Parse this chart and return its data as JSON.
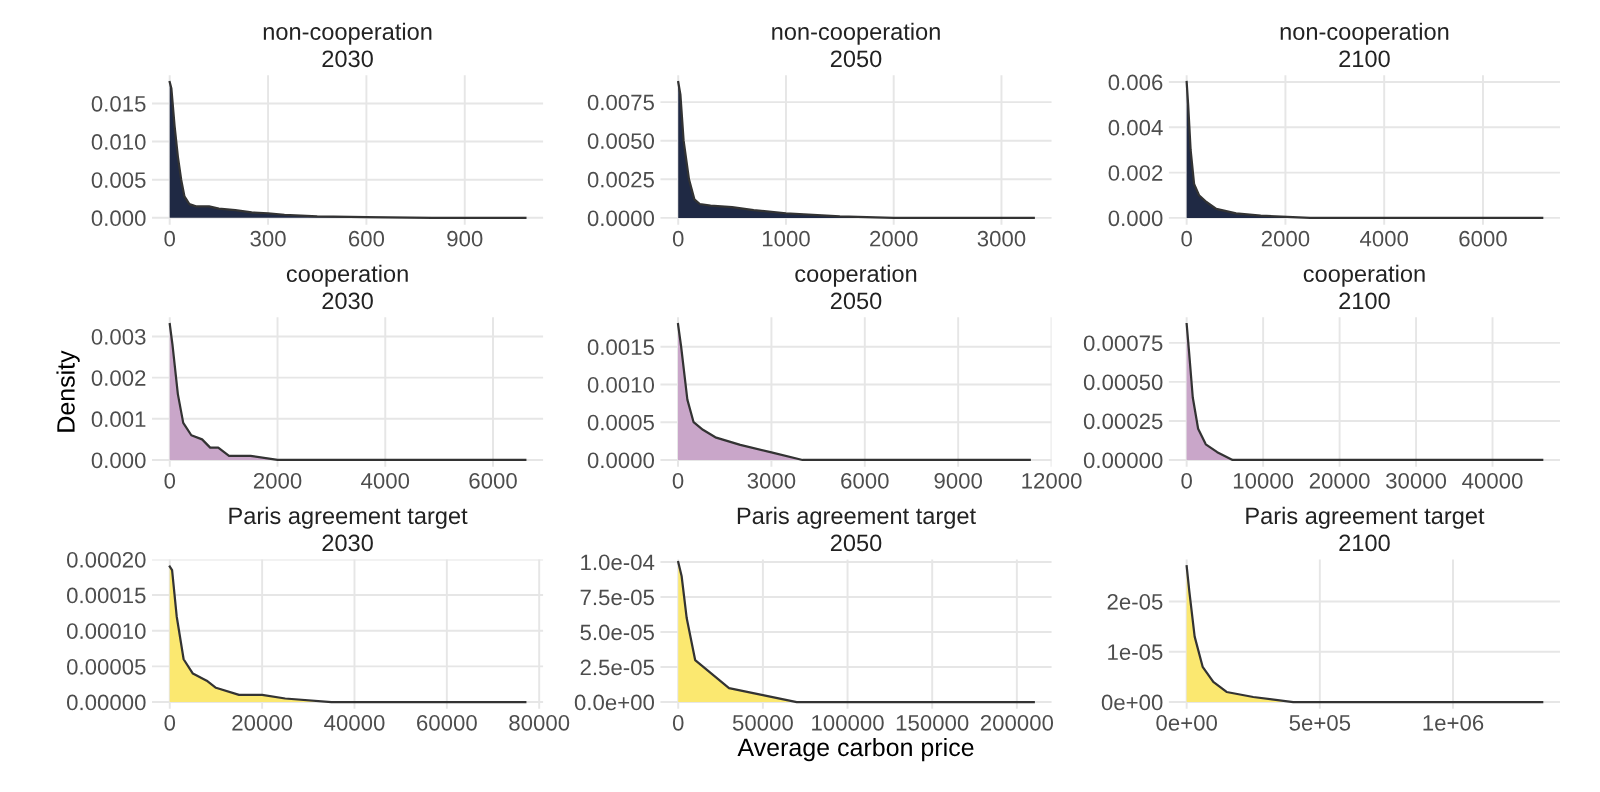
{
  "chart_data": [
    {
      "type": "area",
      "title": "non-cooperation",
      "subtitle": "2030",
      "color": "#1f2944",
      "grid": true,
      "x": [
        0,
        5,
        15,
        25,
        35,
        45,
        60,
        80,
        120,
        150,
        200,
        250,
        300,
        350,
        450,
        600,
        800,
        1085
      ],
      "values": [
        0.0178,
        0.017,
        0.012,
        0.008,
        0.005,
        0.0028,
        0.0018,
        0.0015,
        0.0015,
        0.0012,
        0.001,
        0.0007,
        0.0006,
        0.0004,
        0.0002,
        0.0001,
        0,
        0
      ],
      "xlim": [
        -54,
        1139
      ],
      "ylim": [
        -0.0009,
        0.0187
      ],
      "xticks": [
        0,
        300,
        600,
        900
      ],
      "yticks": [
        {
          "value": 0,
          "label": "0.000"
        },
        {
          "value": 0.005,
          "label": "0.005"
        },
        {
          "value": 0.01,
          "label": "0.010"
        },
        {
          "value": 0.015,
          "label": "0.015"
        }
      ]
    },
    {
      "type": "area",
      "title": "non-cooperation",
      "subtitle": "2050",
      "color": "#1f2944",
      "grid": true,
      "x": [
        0,
        20,
        50,
        100,
        150,
        200,
        300,
        500,
        700,
        1000,
        1500,
        2000,
        3300
      ],
      "values": [
        0.0088,
        0.008,
        0.005,
        0.0025,
        0.0012,
        0.0009,
        0.0008,
        0.0007,
        0.0005,
        0.0003,
        0.0001,
        0,
        0
      ],
      "xlim": [
        -165,
        3465
      ],
      "ylim": [
        -0.00044,
        0.00924
      ],
      "xticks": [
        0,
        1000,
        2000,
        3000
      ],
      "yticks": [
        {
          "value": 0,
          "label": "0.0000"
        },
        {
          "value": 0.0025,
          "label": "0.0025"
        },
        {
          "value": 0.005,
          "label": "0.0050"
        },
        {
          "value": 0.0075,
          "label": "0.0075"
        }
      ]
    },
    {
      "type": "area",
      "title": "non-cooperation",
      "subtitle": "2100",
      "color": "#1f2944",
      "grid": true,
      "x": [
        0,
        30,
        80,
        150,
        250,
        400,
        600,
        1000,
        1500,
        2500,
        7200
      ],
      "values": [
        0.006,
        0.005,
        0.003,
        0.0015,
        0.001,
        0.0007,
        0.0004,
        0.0002,
        0.0001,
        0,
        0
      ],
      "xlim": [
        -360,
        7560
      ],
      "ylim": [
        -0.0003,
        0.0063
      ],
      "xticks": [
        0,
        2000,
        4000,
        6000
      ],
      "yticks": [
        {
          "value": 0,
          "label": "0.000"
        },
        {
          "value": 0.002,
          "label": "0.002"
        },
        {
          "value": 0.004,
          "label": "0.004"
        },
        {
          "value": 0.006,
          "label": "0.006"
        }
      ]
    },
    {
      "type": "area",
      "title": "cooperation",
      "subtitle": "2030",
      "ylabel": "Density",
      "color": "#c9a6c9",
      "grid": true,
      "x": [
        0,
        50,
        150,
        250,
        400,
        600,
        750,
        900,
        1100,
        1500,
        2000,
        3000,
        6600
      ],
      "values": [
        0.0033,
        0.0028,
        0.0016,
        0.0009,
        0.0006,
        0.0005,
        0.0003,
        0.0003,
        0.0001,
        0.0001,
        0,
        0,
        0
      ],
      "xlim": [
        -330,
        6930
      ],
      "ylim": [
        -0.000165,
        0.003465
      ],
      "xticks": [
        0,
        2000,
        4000,
        6000
      ],
      "yticks": [
        {
          "value": 0,
          "label": "0.000"
        },
        {
          "value": 0.001,
          "label": "0.001"
        },
        {
          "value": 0.002,
          "label": "0.002"
        },
        {
          "value": 0.003,
          "label": "0.003"
        }
      ]
    },
    {
      "type": "area",
      "title": "cooperation",
      "subtitle": "2050",
      "color": "#c9a6c9",
      "grid": true,
      "x": [
        0,
        100,
        300,
        500,
        800,
        1200,
        2000,
        3000,
        4000,
        6000,
        11300
      ],
      "values": [
        0.0018,
        0.0015,
        0.0008,
        0.0005,
        0.0004,
        0.0003,
        0.0002,
        0.0001,
        0,
        0,
        0
      ],
      "xlim": [
        -565,
        12000
      ],
      "ylim": [
        -9e-05,
        0.00189
      ],
      "xticks": [
        0,
        3000,
        6000,
        9000,
        12000
      ],
      "yticks": [
        {
          "value": 0,
          "label": "0.0000"
        },
        {
          "value": 0.0005,
          "label": "0.0005"
        },
        {
          "value": 0.001,
          "label": "0.0010"
        },
        {
          "value": 0.0015,
          "label": "0.0015"
        }
      ]
    },
    {
      "type": "area",
      "title": "cooperation",
      "subtitle": "2100",
      "color": "#c9a6c9",
      "grid": true,
      "x": [
        0,
        300,
        800,
        1500,
        2500,
        4000,
        6000,
        10000,
        46500
      ],
      "values": [
        0.00087,
        0.0007,
        0.0004,
        0.0002,
        0.0001,
        5e-05,
        0,
        0,
        0
      ],
      "xlim": [
        -2325,
        48825
      ],
      "ylim": [
        -4.35e-05,
        0.0009135
      ],
      "xticks": [
        0,
        10000,
        20000,
        30000,
        40000
      ],
      "yticks": [
        {
          "value": 0,
          "label": "0.00000"
        },
        {
          "value": 0.00025,
          "label": "0.00025"
        },
        {
          "value": 0.0005,
          "label": "0.00050"
        },
        {
          "value": 0.00075,
          "label": "0.00075"
        }
      ]
    },
    {
      "type": "area",
      "title": "Paris agreement target",
      "subtitle": "2030",
      "color": "#fbe870",
      "grid": true,
      "x": [
        0,
        500,
        1500,
        3000,
        5000,
        8000,
        10000,
        15000,
        20000,
        25000,
        35000,
        50000,
        77000
      ],
      "values": [
        0.00019,
        0.000185,
        0.00012,
        6e-05,
        4e-05,
        3e-05,
        2e-05,
        1e-05,
        1e-05,
        5e-06,
        0,
        0,
        0
      ],
      "xlim": [
        -3850,
        80850
      ],
      "ylim": [
        -9.5e-06,
        0.0002
      ],
      "xticks": [
        0,
        20000,
        40000,
        60000,
        80000
      ],
      "yticks": [
        {
          "value": 0,
          "label": "0.00000"
        },
        {
          "value": 5e-05,
          "label": "0.00005"
        },
        {
          "value": 0.0001,
          "label": "0.00010"
        },
        {
          "value": 0.00015,
          "label": "0.00015"
        },
        {
          "value": 0.0002,
          "label": "0.00020"
        }
      ]
    },
    {
      "type": "area",
      "title": "Paris agreement target",
      "subtitle": "2050",
      "xlabel": "Average carbon price",
      "color": "#fbe870",
      "grid": true,
      "x": [
        0,
        2000,
        5000,
        10000,
        20000,
        30000,
        50000,
        70000,
        100000,
        210000
      ],
      "values": [
        0.0001,
        9e-05,
        6e-05,
        3e-05,
        2e-05,
        1e-05,
        5e-06,
        0,
        0,
        0
      ],
      "xlim": [
        -10500,
        220500
      ],
      "ylim": [
        -4.85e-06,
        0.00010185
      ],
      "xticks": [
        0,
        50000,
        100000,
        150000,
        200000
      ],
      "yticks": [
        {
          "value": 0,
          "label": "0.0e+00"
        },
        {
          "value": 2.5e-05,
          "label": "2.5e-05"
        },
        {
          "value": 5e-05,
          "label": "5.0e-05"
        },
        {
          "value": 7.5e-05,
          "label": "7.5e-05"
        },
        {
          "value": 0.0001,
          "label": "1.0e-04"
        }
      ]
    },
    {
      "type": "area",
      "title": "Paris agreement target",
      "subtitle": "2100",
      "color": "#fbe870",
      "grid": true,
      "x": [
        0,
        10000,
        30000,
        60000,
        100000,
        150000,
        250000,
        400000,
        1335000
      ],
      "values": [
        2.7e-05,
        2.2e-05,
        1.3e-05,
        7e-06,
        4e-06,
        2e-06,
        1e-06,
        0,
        0
      ],
      "xlim": [
        -66750,
        1401750
      ],
      "ylim": [
        -1.35e-06,
        2.835e-05
      ],
      "xticks": [
        {
          "value": 0,
          "label": "0e+00"
        },
        {
          "value": 500000,
          "label": "5e+05"
        },
        {
          "value": 1000000,
          "label": "1e+06"
        }
      ],
      "yticks": [
        {
          "value": 0,
          "label": "0e+00"
        },
        {
          "value": 1e-05,
          "label": "1e-05"
        },
        {
          "value": 2e-05,
          "label": "2e-05"
        }
      ]
    }
  ]
}
